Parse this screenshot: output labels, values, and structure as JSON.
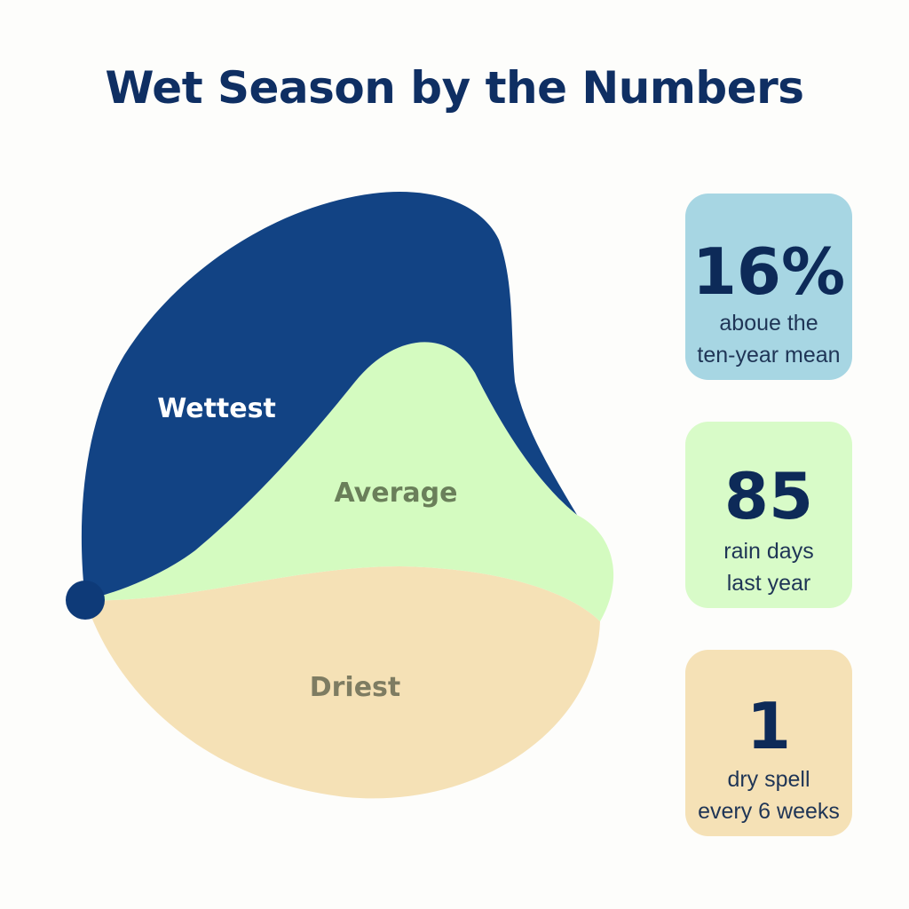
{
  "title": "Wet Season by the Numbers",
  "colors": {
    "title": "#0f2f63",
    "wettest": "#124384",
    "average": "#d4fbc0",
    "driest": "#f5e1b6",
    "stat_blue": "#a7d6e3",
    "stat_green": "#d8fbc8",
    "stat_tan": "#f5e1b6"
  },
  "chart_data": {
    "type": "area",
    "title": "Wet Season by the Numbers",
    "series": [
      {
        "name": "Wettest",
        "color": "#124384"
      },
      {
        "name": "Average",
        "color": "#d4fbc0"
      },
      {
        "name": "Driest",
        "color": "#f5e1b6"
      }
    ],
    "annotations": [
      "Wettest",
      "Average",
      "Driest"
    ]
  },
  "regions": {
    "wettest_label": "Wettest",
    "average_label": "Average",
    "driest_label": "Driest"
  },
  "stats": [
    {
      "value": "16%",
      "line1": "aboue the",
      "line2": "ten-year mean",
      "color": "#a7d6e3"
    },
    {
      "value": "85",
      "line1": "rain days",
      "line2": "last year",
      "color": "#d8fbc8"
    },
    {
      "value": "1",
      "line1": "dry spell",
      "line2": "every 6 weeks",
      "color": "#f5e1b6"
    }
  ]
}
